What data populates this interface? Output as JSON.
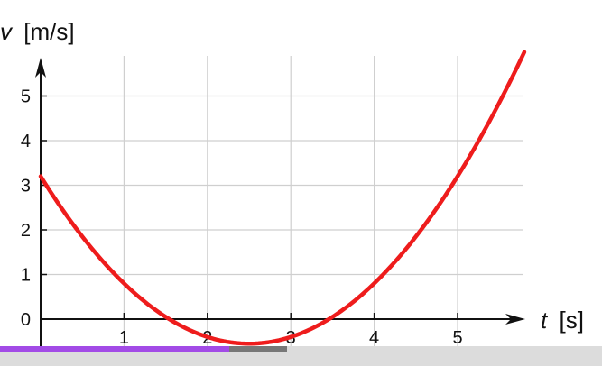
{
  "chart_data": {
    "type": "line",
    "xlabel_var": "t",
    "xlabel_unit": "[s]",
    "ylabel_var": "v",
    "ylabel_unit": "[m/s]",
    "x_ticks": [
      "1",
      "2",
      "3",
      "4",
      "5"
    ],
    "y_ticks": [
      "0",
      "1",
      "2",
      "3",
      "4",
      "5"
    ],
    "xlim": [
      0,
      5.8
    ],
    "ylim": [
      0,
      5.5
    ],
    "grid": true,
    "series": [
      {
        "color": "#ee1c1c",
        "function": "0.6*(t-2.5)^2 - 0.55",
        "x": [
          0,
          0.5,
          1,
          1.5,
          2,
          2.5,
          3,
          3.5,
          4,
          4.5,
          5,
          5.5,
          5.8
        ],
        "y": [
          3.2,
          1.85,
          0.8,
          0.05,
          -0.4,
          -0.55,
          -0.4,
          0.05,
          0.8,
          1.85,
          3.2,
          4.85,
          5.98
        ]
      }
    ]
  },
  "playback": {
    "progress": 0.38,
    "buffered": 0.477,
    "progress_color": "#a24be6"
  }
}
